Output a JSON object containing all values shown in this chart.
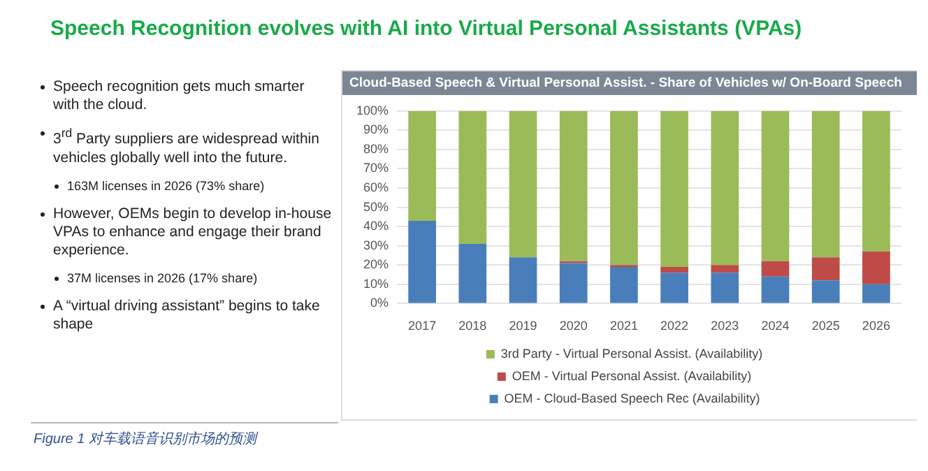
{
  "chart_data": {
    "type": "bar",
    "title": "Speech Recognition evolves with AI into Virtual Personal Assistants (VPAs)",
    "subtitle": "Cloud-Based Speech & Virtual Personal Assist. - Share of Vehicles w/ On-Board Speech",
    "categories": [
      "2017",
      "2018",
      "2019",
      "2020",
      "2021",
      "2022",
      "2023",
      "2024",
      "2025",
      "2026"
    ],
    "stacked": true,
    "series": [
      {
        "name": "OEM - Cloud-Based Speech Rec (Availability)",
        "color": "#4a7ebb",
        "values": [
          43,
          31,
          24,
          21,
          19,
          16,
          16,
          14,
          12,
          10
        ]
      },
      {
        "name": "OEM - Virtual Personal Assist. (Availability)",
        "color": "#be4b48",
        "values": [
          0,
          0,
          0,
          1,
          1,
          3,
          4,
          8,
          12,
          17
        ]
      },
      {
        "name": "3rd Party - Virtual Personal Assist. (Availability)",
        "color": "#9bbb59",
        "values": [
          57,
          69,
          76,
          78,
          80,
          81,
          80,
          78,
          76,
          73
        ]
      }
    ],
    "ylim": [
      0,
      100
    ],
    "yticks": [
      {
        "value": 0,
        "label": "0%"
      },
      {
        "value": 10,
        "label": "10%"
      },
      {
        "value": 20,
        "label": "20%"
      },
      {
        "value": 30,
        "label": "30%"
      },
      {
        "value": 40,
        "label": "40%"
      },
      {
        "value": 50,
        "label": "50%"
      },
      {
        "value": 60,
        "label": "60%"
      },
      {
        "value": 70,
        "label": "70%"
      },
      {
        "value": 80,
        "label": "80%"
      },
      {
        "value": 90,
        "label": "90%"
      },
      {
        "value": 100,
        "label": "100%"
      }
    ],
    "grid": "y",
    "legend": "bottom",
    "annotations": [
      "Speech recognition gets much smarter with the cloud.",
      "3$^{rd}$ Party suppliers are widespread within vehicles globally well into the future.",
      "163M licenses in 2026 (73% share)",
      "However, OEMs begin to develop in-house VPAs to enhance and engage their brand experience.",
      "37M licenses in 2026 (17% share)",
      "A “virtual driving assistant” begins to take shape",
      "Figure 1 对车载语音识别市场的预测"
    ]
  }
}
